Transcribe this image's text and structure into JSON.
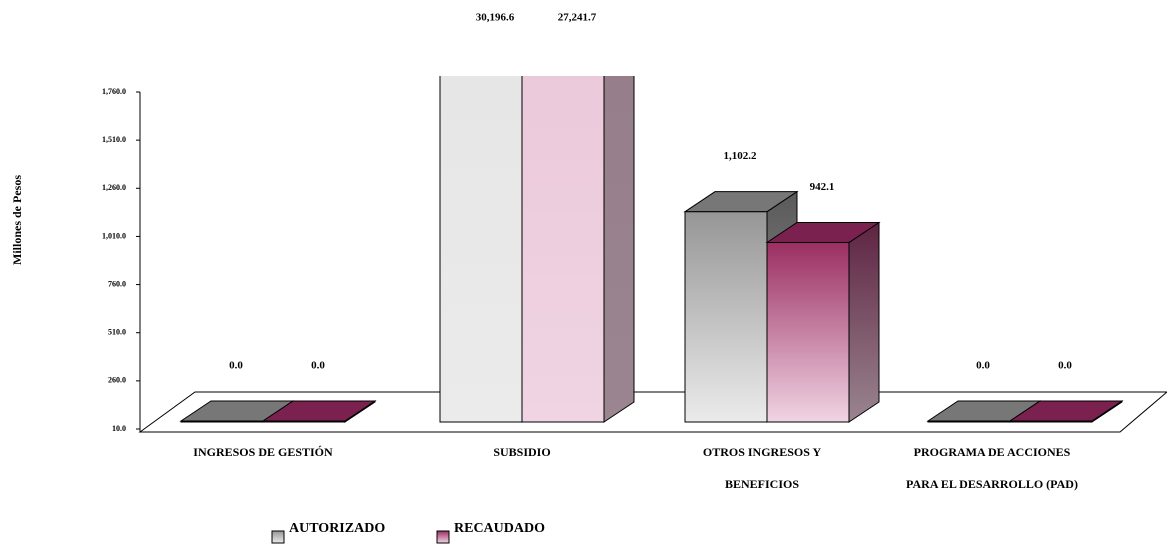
{
  "chart_data": {
    "type": "bar3d",
    "y_axis_label": "Millones de Pesos",
    "categories": [
      "INGRESOS DE GESTIÓN",
      "SUBSIDIO",
      "OTROS INGRESOS Y BENEFICIOS",
      "PROGRAMA DE ACCIONES PARA EL DESARROLLO (PAD)"
    ],
    "series": [
      {
        "name": "AUTORIZADO",
        "color": "#999999",
        "values": [
          0,
          30196.6,
          1102.2,
          0
        ],
        "value_labels": [
          "0.0",
          "30,196.6",
          "1,102.2",
          "0.0"
        ]
      },
      {
        "name": "RECAUDADO",
        "color": "#9b2f62",
        "values": [
          0,
          27241.7,
          942.1,
          0
        ],
        "value_labels": [
          "0.0",
          "27,241.7",
          "942.1",
          "0.0"
        ]
      }
    ],
    "ylim": [
      10,
      1760
    ],
    "yticks": [
      {
        "value": 10,
        "label": "10.0"
      },
      {
        "value": 260,
        "label": "260.0"
      },
      {
        "value": 510,
        "label": "510.0"
      },
      {
        "value": 760,
        "label": "760.0"
      },
      {
        "value": 1010,
        "label": "1,010.0"
      },
      {
        "value": 1260,
        "label": "1,260.0"
      },
      {
        "value": 1510,
        "label": "1,510.0"
      },
      {
        "value": 1760,
        "label": "1,760.0"
      }
    ],
    "legend": "bottom"
  }
}
